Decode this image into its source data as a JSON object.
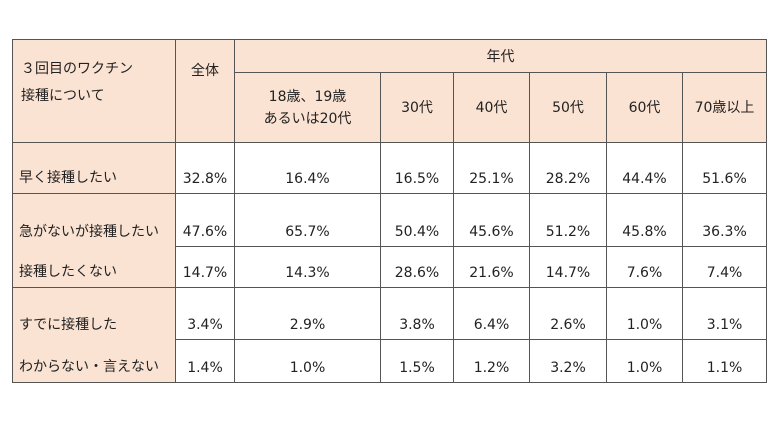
{
  "header": {
    "title_line1": "３回目のワクチン",
    "title_line2": "接種について",
    "total": "全体",
    "nendai": "年代",
    "ages": [
      {
        "line1": "18歳、19歳",
        "line2": "あるいは20代"
      },
      {
        "line1": "30代",
        "line2": ""
      },
      {
        "line1": "40代",
        "line2": ""
      },
      {
        "line1": "50代",
        "line2": ""
      },
      {
        "line1": "60代",
        "line2": ""
      },
      {
        "line1": "70歳以上",
        "line2": ""
      }
    ]
  },
  "rows": [
    {
      "label": "早く接種したい",
      "values": [
        "32.8%",
        "16.4%",
        "16.5%",
        "25.1%",
        "28.2%",
        "44.4%",
        "51.6%"
      ]
    },
    {
      "label": "急がないが接種したい",
      "values": [
        "47.6%",
        "65.7%",
        "50.4%",
        "45.6%",
        "51.2%",
        "45.8%",
        "36.3%"
      ]
    },
    {
      "label": "接種したくない",
      "values": [
        "14.7%",
        "14.3%",
        "28.6%",
        "21.6%",
        "14.7%",
        "7.6%",
        "7.4%"
      ]
    },
    {
      "label": "すでに接種した",
      "values": [
        "3.4%",
        "2.9%",
        "3.8%",
        "6.4%",
        "2.6%",
        "1.0%",
        "3.1%"
      ]
    },
    {
      "label": "わからない・言えない",
      "values": [
        "1.4%",
        "1.0%",
        "1.5%",
        "1.2%",
        "3.2%",
        "1.0%",
        "1.1%"
      ]
    }
  ],
  "colors": {
    "header_bg": "#fbe3d3",
    "border": "#555555"
  }
}
